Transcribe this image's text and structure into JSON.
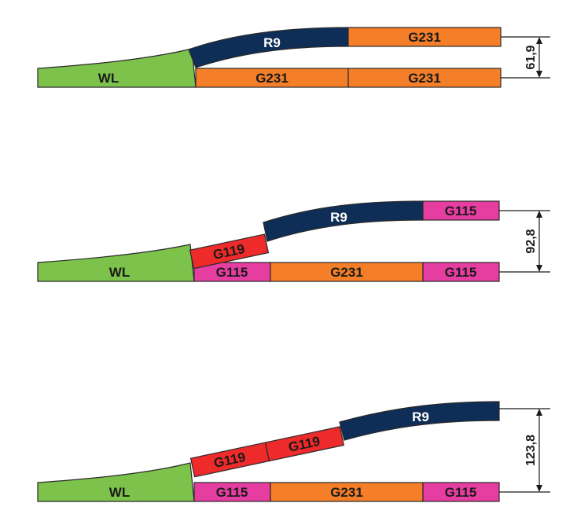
{
  "colors": {
    "wl": "#7dc24b",
    "g231": "#f47f28",
    "g115": "#e53da0",
    "g119": "#ee2a2a",
    "r9": "#0e2e58"
  },
  "diagram_1": {
    "wl": "WL",
    "straight_1": "G231",
    "straight_2": "G231",
    "curve": "R9",
    "branch_straight": "G231",
    "dimension": "61,9"
  },
  "diagram_2": {
    "wl": "WL",
    "straight_1": "G115",
    "straight_2": "G231",
    "straight_3": "G115",
    "branch_1": "G119",
    "curve": "R9",
    "branch_straight": "G115",
    "dimension": "92,8"
  },
  "diagram_3": {
    "wl": "WL",
    "straight_1": "G115",
    "straight_2": "G231",
    "straight_3": "G115",
    "branch_1": "G119",
    "branch_2": "G119",
    "curve": "R9",
    "dimension": "123,8"
  }
}
